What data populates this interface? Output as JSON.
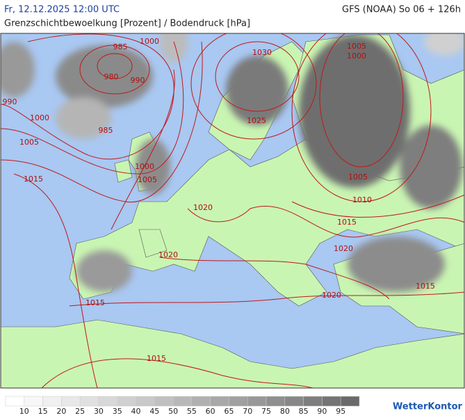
{
  "header": {
    "datetime": "Fr, 12.12.2025 12:00 UTC",
    "model": "GFS (NOAA) So 06 + 126h",
    "subtitle": "Grenzschichtbewoelkung [Prozent] / Bodendruck [hPa]"
  },
  "isobar_labels": [
    985,
    1000,
    980,
    990,
    990,
    1000,
    985,
    1005,
    1015,
    1000,
    1005,
    1030,
    1025,
    1005,
    1000,
    1005,
    1010,
    1015,
    1020,
    1020,
    1020,
    1015,
    1015,
    1020,
    1015
  ],
  "legend": {
    "labels": [
      10,
      15,
      20,
      25,
      30,
      35,
      40,
      45,
      50,
      55,
      60,
      65,
      70,
      75,
      80,
      85,
      90,
      95
    ],
    "colors": [
      "#ffffff",
      "#f7f7f7",
      "#f0f0f0",
      "#e8e8e8",
      "#e0e0e0",
      "#d8d8d8",
      "#d0d0d0",
      "#c8c8c8",
      "#c0c0c0",
      "#b8b8b8",
      "#b0b0b0",
      "#a8a8a8",
      "#a0a0a0",
      "#989898",
      "#8f8f8f",
      "#878787",
      "#7e7e7e",
      "#747474",
      "#6a6a6a"
    ]
  },
  "logo": "WetterKontor"
}
